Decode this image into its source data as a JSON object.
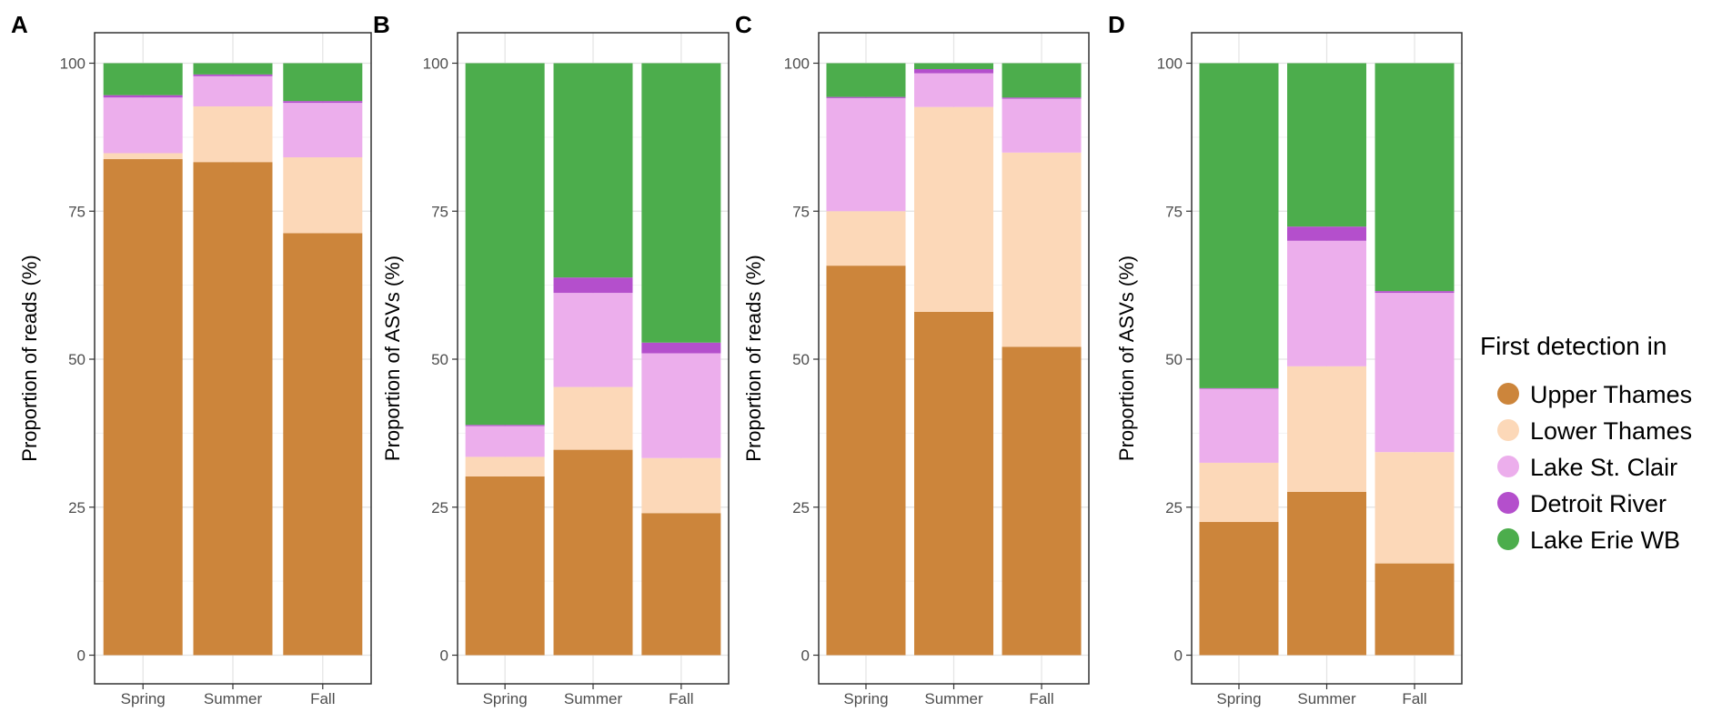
{
  "chart_data": [
    {
      "panel": "A",
      "type": "bar",
      "stacked": true,
      "ylabel": "Proportion of reads (%)",
      "ylim": [
        0,
        100
      ],
      "yticks": [
        0,
        25,
        50,
        75,
        100
      ],
      "categories": [
        "Spring",
        "Summer",
        "Fall"
      ],
      "series": [
        {
          "name": "Upper Thames",
          "values": [
            83.8,
            83.3,
            71.3
          ]
        },
        {
          "name": "Lower Thames",
          "values": [
            1.0,
            9.4,
            12.8
          ]
        },
        {
          "name": "Lake St. Clair",
          "values": [
            9.4,
            5.1,
            9.2
          ]
        },
        {
          "name": "Detroit River",
          "values": [
            0.4,
            0.3,
            0.3
          ]
        },
        {
          "name": "Lake Erie WB",
          "values": [
            5.4,
            1.9,
            6.4
          ]
        }
      ]
    },
    {
      "panel": "B",
      "type": "bar",
      "stacked": true,
      "ylabel": "Proportion of ASVs (%)",
      "ylim": [
        0,
        100
      ],
      "yticks": [
        0,
        25,
        50,
        75,
        100
      ],
      "categories": [
        "Spring",
        "Summer",
        "Fall"
      ],
      "series": [
        {
          "name": "Upper Thames",
          "values": [
            30.2,
            34.7,
            24.0
          ]
        },
        {
          "name": "Lower Thames",
          "values": [
            3.3,
            10.6,
            9.3
          ]
        },
        {
          "name": "Lake St. Clair",
          "values": [
            5.2,
            15.9,
            17.7
          ]
        },
        {
          "name": "Detroit River",
          "values": [
            0.2,
            2.6,
            1.8
          ]
        },
        {
          "name": "Lake Erie WB",
          "values": [
            61.1,
            36.2,
            47.2
          ]
        }
      ]
    },
    {
      "panel": "C",
      "type": "bar",
      "stacked": true,
      "ylabel": "Proportion of reads (%)",
      "ylim": [
        0,
        100
      ],
      "yticks": [
        0,
        25,
        50,
        75,
        100
      ],
      "categories": [
        "Spring",
        "Summer",
        "Fall"
      ],
      "series": [
        {
          "name": "Upper Thames",
          "values": [
            65.8,
            58.0,
            52.1
          ]
        },
        {
          "name": "Lower Thames",
          "values": [
            9.2,
            34.6,
            32.8
          ]
        },
        {
          "name": "Lake St. Clair",
          "values": [
            19.1,
            5.7,
            9.1
          ]
        },
        {
          "name": "Detroit River",
          "values": [
            0.2,
            0.7,
            0.2
          ]
        },
        {
          "name": "Lake Erie WB",
          "values": [
            5.7,
            1.0,
            5.8
          ]
        }
      ]
    },
    {
      "panel": "D",
      "type": "bar",
      "stacked": true,
      "ylabel": "Proportion of ASVs (%)",
      "ylim": [
        0,
        100
      ],
      "yticks": [
        0,
        25,
        50,
        75,
        100
      ],
      "categories": [
        "Spring",
        "Summer",
        "Fall"
      ],
      "series": [
        {
          "name": "Upper Thames",
          "values": [
            22.5,
            27.6,
            15.5
          ]
        },
        {
          "name": "Lower Thames",
          "values": [
            10.0,
            21.2,
            18.8
          ]
        },
        {
          "name": "Lake St. Clair",
          "values": [
            12.5,
            21.2,
            26.9
          ]
        },
        {
          "name": "Detroit River",
          "values": [
            0.1,
            2.4,
            0.3
          ]
        },
        {
          "name": "Lake Erie WB",
          "values": [
            54.9,
            27.6,
            38.5
          ]
        }
      ]
    }
  ],
  "legend": {
    "title": "First detection in",
    "position": "right",
    "items": [
      {
        "name": "Upper Thames",
        "color": "#cc853b"
      },
      {
        "name": "Lower Thames",
        "color": "#fcd8b8"
      },
      {
        "name": "Lake St. Clair",
        "color": "#ecaeec"
      },
      {
        "name": "Detroit River",
        "color": "#b44fcc"
      },
      {
        "name": "Lake Erie WB",
        "color": "#4cad4c"
      }
    ]
  }
}
